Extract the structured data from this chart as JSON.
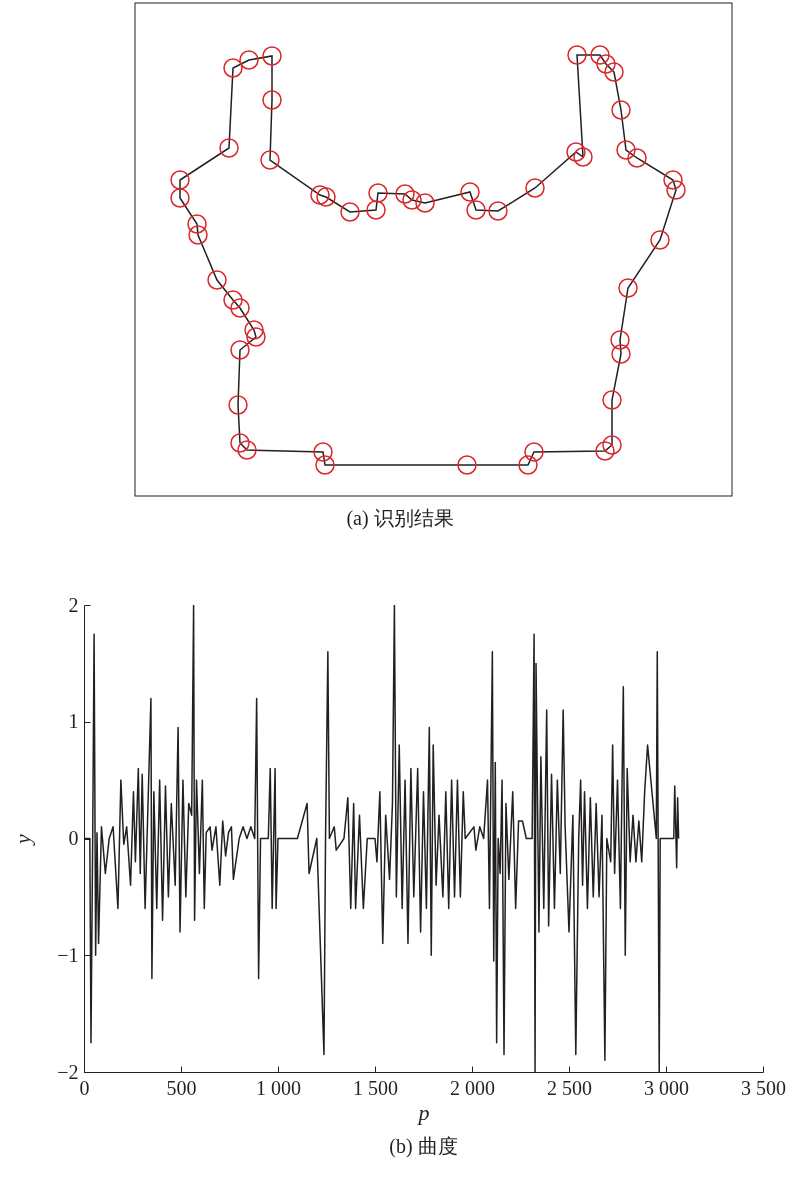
{
  "chart_data": [
    {
      "type": "other",
      "title": "(a) 识别结果"
    },
    {
      "type": "line",
      "title": "(b) 曲度",
      "xlabel": "p",
      "ylabel": "y",
      "xlim": [
        0,
        3500
      ],
      "ylim": [
        -2,
        2
      ],
      "xticks": [
        0,
        500,
        {
          "value": 1000,
          "label": "1 000"
        },
        {
          "value": 1500,
          "label": "1 500"
        },
        {
          "value": 2000,
          "label": "2 000"
        },
        {
          "value": 2500,
          "label": "2 500"
        },
        {
          "value": 3000,
          "label": "3 000"
        },
        {
          "value": 3500,
          "label": "3 500"
        }
      ],
      "yticks": [
        -2,
        -1,
        0,
        1,
        2
      ],
      "series": [
        {
          "color": "#231f20",
          "x": [
            0,
            30,
            36,
            45,
            52,
            60,
            67,
            75,
            90,
            110,
            130,
            150,
            175,
            190,
            205,
            220,
            240,
            255,
            265,
            280,
            290,
            300,
            315,
            330,
            345,
            350,
            360,
            375,
            390,
            405,
            420,
            435,
            450,
            470,
            485,
            495,
            510,
            525,
            540,
            555,
            565,
            570,
            580,
            595,
            610,
            620,
            630,
            650,
            660,
            680,
            700,
            715,
            730,
            745,
            760,
            770,
            800,
            820,
            840,
            860,
            880,
            890,
            900,
            910,
            950,
            960,
            970,
            985,
            990,
            1000,
            1100,
            1150,
            1160,
            1200,
            1237,
            1245,
            1257,
            1265,
            1290,
            1300,
            1340,
            1360,
            1375,
            1390,
            1400,
            1420,
            1440,
            1460,
            1500,
            1510,
            1525,
            1540,
            1555,
            1575,
            1590,
            1600,
            1610,
            1625,
            1640,
            1655,
            1670,
            1685,
            1700,
            1720,
            1735,
            1750,
            1765,
            1780,
            1790,
            1800,
            1815,
            1830,
            1850,
            1865,
            1880,
            1895,
            1910,
            1925,
            1940,
            1955,
            1965,
            2010,
            2020,
            2040,
            2060,
            2080,
            2090,
            2105,
            2112,
            2120,
            2127,
            2135,
            2145,
            2155,
            2165,
            2175,
            2190,
            2210,
            2225,
            2240,
            2260,
            2280,
            2310,
            2320,
            2325,
            2330,
            2345,
            2355,
            2370,
            2385,
            2395,
            2410,
            2425,
            2440,
            2455,
            2470,
            2480,
            2500,
            2520,
            2535,
            2550,
            2560,
            2570,
            2580,
            2595,
            2610,
            2625,
            2640,
            2655,
            2670,
            2685,
            2695,
            2715,
            2725,
            2735,
            2750,
            2765,
            2780,
            2790,
            2800,
            2815,
            2830,
            2845,
            2860,
            2875,
            2890,
            2905,
            2950,
            2955,
            2965,
            2970,
            3040,
            3045,
            3055,
            3060,
            3065
          ],
          "values": [
            0,
            0,
            -1.75,
            0.05,
            1.75,
            -1.0,
            0.05,
            -0.9,
            0.1,
            -0.3,
            0,
            0.1,
            -0.6,
            0.5,
            -0.05,
            0.1,
            -0.4,
            0.4,
            -0.2,
            0.6,
            -0.3,
            0.55,
            -0.6,
            0.3,
            1.2,
            -1.2,
            0.4,
            -0.6,
            0.5,
            -0.7,
            0.45,
            -0.5,
            0.3,
            -0.4,
            0.95,
            -0.8,
            0.5,
            -0.5,
            0.3,
            0.2,
            2.0,
            -0.7,
            0.5,
            -0.3,
            0.5,
            -0.6,
            0.05,
            0.1,
            -0.1,
            0.1,
            -0.4,
            0.15,
            -0.15,
            0.05,
            0.1,
            -0.35,
            0,
            0.1,
            0,
            0.1,
            0,
            1.2,
            -1.2,
            0,
            0,
            0.6,
            -0.6,
            0.6,
            -0.6,
            0,
            0,
            0.3,
            -0.3,
            0,
            -1.85,
            0,
            1.6,
            0,
            0.1,
            -0.1,
            0,
            0.35,
            -0.6,
            0.3,
            -0.6,
            0.2,
            -0.6,
            0,
            0,
            -0.2,
            0.4,
            -0.9,
            0.2,
            -0.35,
            0.3,
            2.0,
            -0.5,
            0.8,
            -0.6,
            0.5,
            -0.9,
            0.6,
            -0.5,
            0.6,
            -0.8,
            0.4,
            -0.6,
            0.95,
            -1.0,
            0.8,
            -0.4,
            0.2,
            -0.5,
            0.4,
            -0.6,
            0.5,
            -0.5,
            0.5,
            -0.5,
            0.4,
            0,
            0.1,
            -0.1,
            0.1,
            0,
            0.5,
            -0.6,
            1.6,
            -1.05,
            0.65,
            -1.75,
            0,
            -0.3,
            0.5,
            -1.85,
            0.3,
            -0.35,
            0.4,
            -0.6,
            0.15,
            0.15,
            0,
            0,
            1.75,
            -2.0,
            1.5,
            -0.8,
            0.7,
            -0.6,
            1.1,
            -0.75,
            0.55,
            -0.6,
            0.5,
            -0.3,
            1.1,
            0.1,
            -0.8,
            0.2,
            -1.85,
            0,
            0.5,
            -0.4,
            0.4,
            -0.6,
            0.35,
            -0.5,
            0.3,
            -0.5,
            0.2,
            -1.9,
            0,
            -0.2,
            0.8,
            -0.3,
            0.5,
            -0.6,
            1.3,
            -1.0,
            0.6,
            -0.2,
            0.2,
            -0.2,
            0.15,
            -0.2,
            0.4,
            0.8,
            0,
            1.6,
            -2.0,
            0,
            0,
            0.45,
            -0.25,
            0.35,
            0
          ]
        }
      ]
    }
  ]
}
